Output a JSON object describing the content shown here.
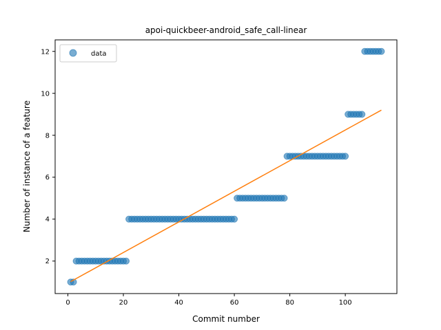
{
  "chart_data": {
    "type": "scatter",
    "title": "apoi-quickbeer-android_safe_call-linear",
    "xlabel": "Commit number",
    "ylabel": "Number of instance of a feature",
    "xlim": [
      -4.6,
      118.6
    ],
    "ylim": [
      0.45,
      12.55
    ],
    "xticks": [
      0,
      20,
      40,
      60,
      80,
      100
    ],
    "yticks": [
      2,
      4,
      6,
      8,
      10,
      12
    ],
    "grid": false,
    "legend": {
      "position": "top-left",
      "entries": [
        "data"
      ]
    },
    "colors": {
      "data": "#1f77b4",
      "fit": "#ff7f0e"
    },
    "series": [
      {
        "name": "data",
        "type": "scatter",
        "segments": [
          {
            "x_start": 1,
            "x_end": 2,
            "y": 1
          },
          {
            "x_start": 3,
            "x_end": 21,
            "y": 2
          },
          {
            "x_start": 22,
            "x_end": 60,
            "y": 4
          },
          {
            "x_start": 61,
            "x_end": 78,
            "y": 5
          },
          {
            "x_start": 79,
            "x_end": 100,
            "y": 7
          },
          {
            "x_start": 101,
            "x_end": 106,
            "y": 9
          },
          {
            "x_start": 107,
            "x_end": 113,
            "y": 12
          }
        ]
      },
      {
        "type": "line",
        "x": [
          1,
          113
        ],
        "y": [
          1.02,
          9.2
        ]
      }
    ]
  }
}
